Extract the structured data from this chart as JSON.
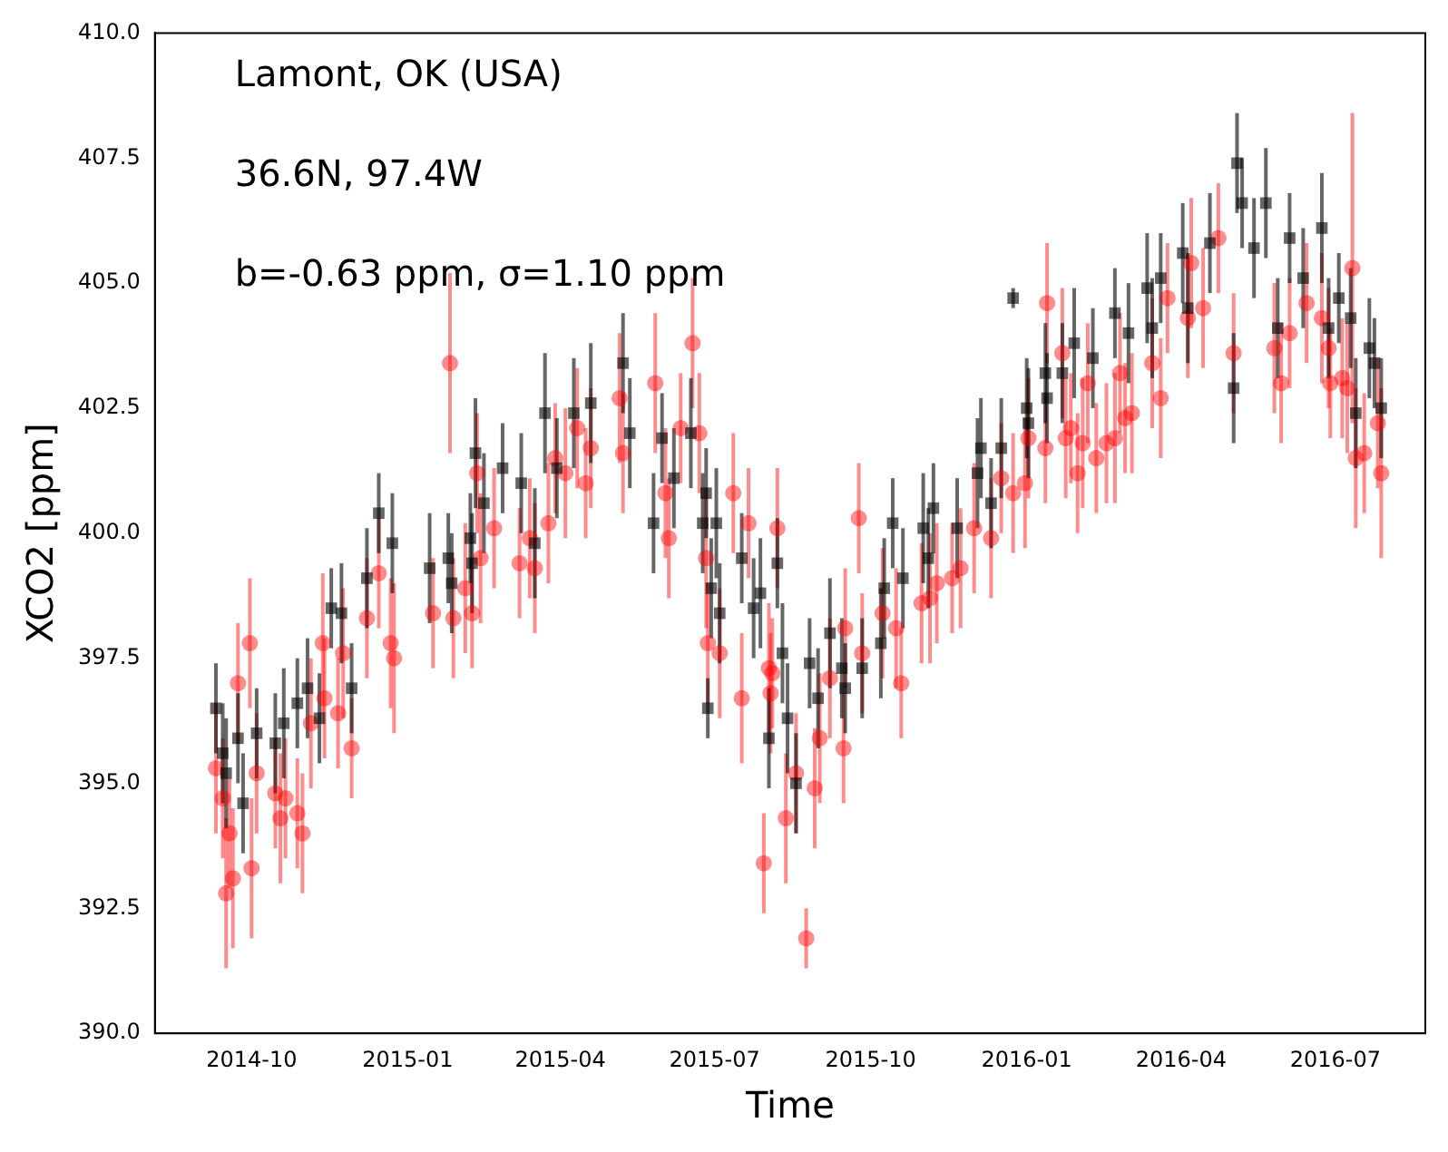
{
  "chart_data": {
    "type": "scatter",
    "xlabel": "Time",
    "ylabel": "XCO2 [ppm]",
    "annotations": [
      "Lamont, OK (USA)",
      "36.6N, 97.4W",
      "b=-0.63 ppm, σ=1.10 ppm"
    ],
    "xlim": [
      "2014-08-05",
      "2016-08-23"
    ],
    "xticks": [
      "2014-10",
      "2015-01",
      "2015-04",
      "2015-07",
      "2015-10",
      "2016-01",
      "2016-04",
      "2016-07"
    ],
    "ylim": [
      390,
      410
    ],
    "yticks": [
      {
        "value": 390,
        "label": "390.0"
      },
      {
        "value": 392.5,
        "label": "392.5"
      },
      {
        "value": 395,
        "label": "395.0"
      },
      {
        "value": 397.5,
        "label": "397.5"
      },
      {
        "value": 400,
        "label": "400.0"
      },
      {
        "value": 402.5,
        "label": "402.5"
      },
      {
        "value": 405,
        "label": "405.0"
      },
      {
        "value": 407.5,
        "label": "407.5"
      },
      {
        "value": 410,
        "label": "410.0"
      }
    ],
    "grid": false,
    "legend": false,
    "series": [
      {
        "color": "#ff0000",
        "marker": "circle",
        "x": [
          "2014-09-10",
          "2014-09-14",
          "2014-09-16",
          "2014-09-18",
          "2014-09-20",
          "2014-09-23",
          "2014-09-30",
          "2014-10-01",
          "2014-10-04",
          "2014-10-15",
          "2014-10-18",
          "2014-10-21",
          "2014-10-28",
          "2014-10-31",
          "2014-11-05",
          "2014-11-12",
          "2014-11-13",
          "2014-11-21",
          "2014-11-24",
          "2014-11-29",
          "2014-12-08",
          "2014-12-15",
          "2014-12-22",
          "2014-12-24",
          "2015-01-16",
          "2015-01-26",
          "2015-01-28",
          "2015-02-04",
          "2015-02-08",
          "2015-02-11",
          "2015-02-13",
          "2015-02-21",
          "2015-03-08",
          "2015-03-14",
          "2015-03-17",
          "2015-03-25",
          "2015-03-29",
          "2015-04-04",
          "2015-04-11",
          "2015-04-16",
          "2015-04-19",
          "2015-05-06",
          "2015-05-08",
          "2015-05-27",
          "2015-06-02",
          "2015-06-04",
          "2015-06-11",
          "2015-06-18",
          "2015-06-22",
          "2015-06-26",
          "2015-06-27",
          "2015-07-04",
          "2015-07-12",
          "2015-07-17",
          "2015-07-21",
          "2015-07-30",
          "2015-08-02",
          "2015-08-03",
          "2015-08-04",
          "2015-08-07",
          "2015-08-12",
          "2015-08-18",
          "2015-08-24",
          "2015-08-29",
          "2015-09-01",
          "2015-09-07",
          "2015-09-15",
          "2015-09-16",
          "2015-09-24",
          "2015-09-26",
          "2015-10-08",
          "2015-10-16",
          "2015-10-19",
          "2015-10-31",
          "2015-11-05",
          "2015-11-09",
          "2015-11-18",
          "2015-11-23",
          "2015-12-01",
          "2015-12-11",
          "2015-12-17",
          "2015-12-24",
          "2015-12-31",
          "2016-01-02",
          "2016-01-12",
          "2016-01-13",
          "2016-01-22",
          "2016-01-24",
          "2016-01-27",
          "2016-01-31",
          "2016-02-03",
          "2016-02-06",
          "2016-02-11",
          "2016-02-17",
          "2016-02-22",
          "2016-02-25",
          "2016-02-28",
          "2016-03-03",
          "2016-03-15",
          "2016-03-20",
          "2016-03-24",
          "2016-04-05",
          "2016-04-07",
          "2016-04-14",
          "2016-04-23",
          "2016-05-02",
          "2016-05-26",
          "2016-05-30",
          "2016-06-04",
          "2016-06-14",
          "2016-06-23",
          "2016-06-27",
          "2016-06-28",
          "2016-07-05",
          "2016-07-08",
          "2016-07-11",
          "2016-07-13",
          "2016-07-18",
          "2016-07-26",
          "2016-07-28"
        ],
        "values": [
          395.3,
          394.7,
          392.8,
          394.0,
          393.1,
          397.0,
          397.8,
          393.3,
          395.2,
          394.8,
          394.3,
          394.7,
          394.4,
          394.0,
          396.2,
          397.8,
          396.7,
          396.4,
          397.6,
          395.7,
          398.3,
          399.2,
          397.8,
          397.5,
          398.4,
          403.4,
          398.3,
          398.9,
          398.4,
          401.2,
          399.5,
          400.1,
          399.4,
          399.9,
          399.3,
          400.2,
          401.5,
          401.2,
          402.1,
          401.0,
          401.7,
          402.7,
          401.6,
          403.0,
          400.8,
          399.9,
          402.1,
          403.8,
          402.0,
          399.5,
          397.8,
          397.6,
          400.8,
          396.7,
          400.2,
          393.4,
          397.3,
          396.8,
          397.2,
          400.1,
          394.3,
          395.2,
          391.9,
          394.9,
          395.9,
          397.1,
          395.7,
          398.1,
          400.3,
          397.6,
          398.4,
          398.1,
          397.0,
          398.6,
          398.7,
          399.0,
          399.1,
          399.3,
          400.1,
          399.9,
          401.1,
          400.8,
          401.0,
          401.9,
          401.7,
          404.6,
          403.6,
          401.9,
          402.1,
          401.2,
          401.8,
          403.0,
          401.5,
          401.8,
          401.9,
          403.2,
          402.3,
          402.4,
          403.4,
          402.7,
          404.7,
          404.3,
          405.4,
          404.5,
          405.9,
          403.6,
          403.7,
          403.0,
          404.0,
          404.6,
          404.3,
          403.7,
          403.0,
          403.1,
          402.9,
          405.3,
          401.5,
          401.6,
          402.2,
          401.2
        ],
        "errors": [
          1.3,
          1.2,
          1.5,
          1.1,
          1.4,
          1.2,
          1.3,
          1.4,
          1.2,
          1.1,
          1.3,
          1.2,
          1.1,
          1.2,
          1.3,
          1.4,
          1.2,
          1.1,
          1.3,
          1.0,
          1.2,
          1.1,
          1.3,
          1.5,
          1.1,
          1.8,
          1.2,
          1.3,
          1.1,
          1.2,
          1.3,
          1.2,
          1.1,
          1.2,
          1.3,
          1.2,
          1.1,
          1.3,
          1.2,
          1.1,
          1.2,
          1.3,
          1.2,
          1.4,
          1.3,
          1.2,
          1.1,
          1.3,
          1.2,
          1.4,
          1.2,
          1.3,
          1.2,
          1.3,
          1.1,
          1.0,
          1.3,
          1.2,
          1.1,
          1.2,
          1.3,
          1.2,
          0.6,
          1.2,
          1.3,
          1.2,
          1.1,
          1.2,
          1.1,
          1.2,
          1.3,
          1.2,
          1.1,
          1.2,
          1.3,
          1.2,
          1.1,
          1.2,
          1.3,
          1.2,
          1.1,
          1.2,
          1.3,
          1.2,
          1.1,
          1.2,
          1.3,
          1.2,
          1.1,
          1.2,
          1.3,
          1.2,
          1.1,
          1.2,
          1.3,
          1.2,
          1.1,
          1.2,
          1.3,
          1.2,
          1.1,
          1.2,
          1.3,
          1.2,
          1.1,
          1.2,
          1.3,
          1.2,
          1.1,
          1.2,
          1.3,
          1.2,
          1.1,
          1.2,
          1.3,
          3.1,
          1.4,
          1.2,
          1.3,
          1.7
        ]
      },
      {
        "color": "#000000",
        "marker": "square",
        "x": [
          "2014-09-10",
          "2014-09-14",
          "2014-09-16",
          "2014-09-23",
          "2014-09-26",
          "2014-10-04",
          "2014-10-15",
          "2014-10-20",
          "2014-10-28",
          "2014-11-03",
          "2014-11-10",
          "2014-11-17",
          "2014-11-23",
          "2014-11-29",
          "2014-12-08",
          "2014-12-15",
          "2014-12-23",
          "2015-01-14",
          "2015-01-25",
          "2015-01-27",
          "2015-02-07",
          "2015-02-08",
          "2015-02-10",
          "2015-02-15",
          "2015-02-26",
          "2015-03-09",
          "2015-03-17",
          "2015-03-23",
          "2015-03-30",
          "2015-04-09",
          "2015-04-19",
          "2015-05-08",
          "2015-05-12",
          "2015-05-26",
          "2015-05-31",
          "2015-06-07",
          "2015-06-17",
          "2015-06-24",
          "2015-06-26",
          "2015-06-27",
          "2015-06-29",
          "2015-07-02",
          "2015-07-04",
          "2015-07-17",
          "2015-07-24",
          "2015-07-28",
          "2015-08-02",
          "2015-08-07",
          "2015-08-10",
          "2015-08-13",
          "2015-08-18",
          "2015-08-26",
          "2015-08-31",
          "2015-09-07",
          "2015-09-14",
          "2015-09-16",
          "2015-09-26",
          "2015-10-07",
          "2015-10-09",
          "2015-10-14",
          "2015-10-20",
          "2015-11-01",
          "2015-11-04",
          "2015-11-07",
          "2015-11-21",
          "2015-12-03",
          "2015-12-05",
          "2015-12-11",
          "2015-12-17",
          "2015-12-24",
          "2016-01-01",
          "2016-01-02",
          "2016-01-12",
          "2016-01-13",
          "2016-01-22",
          "2016-01-29",
          "2016-02-09",
          "2016-02-22",
          "2016-03-01",
          "2016-03-12",
          "2016-03-15",
          "2016-03-20",
          "2016-04-02",
          "2016-04-05",
          "2016-04-18",
          "2016-05-02",
          "2016-05-04",
          "2016-05-07",
          "2016-05-14",
          "2016-05-21",
          "2016-05-28",
          "2016-06-04",
          "2016-06-12",
          "2016-06-23",
          "2016-06-27",
          "2016-07-03",
          "2016-07-10",
          "2016-07-13",
          "2016-07-21",
          "2016-07-24",
          "2016-07-28"
        ],
        "values": [
          396.5,
          395.6,
          395.2,
          395.9,
          394.6,
          396.0,
          395.8,
          396.2,
          396.6,
          396.9,
          396.3,
          398.5,
          398.4,
          396.9,
          399.1,
          400.4,
          399.8,
          399.3,
          399.5,
          399.0,
          399.9,
          399.4,
          401.6,
          400.6,
          401.3,
          401.0,
          399.8,
          402.4,
          401.3,
          402.4,
          402.6,
          403.4,
          402.0,
          400.2,
          401.9,
          401.1,
          402.0,
          400.2,
          400.8,
          396.5,
          398.9,
          400.2,
          398.4,
          399.5,
          398.5,
          398.8,
          395.9,
          399.4,
          397.6,
          396.3,
          395.0,
          397.4,
          396.7,
          398.0,
          397.3,
          396.9,
          397.3,
          397.8,
          398.9,
          400.2,
          399.1,
          400.1,
          399.5,
          400.5,
          400.1,
          401.2,
          401.7,
          400.6,
          401.7,
          404.7,
          402.5,
          402.2,
          403.2,
          402.7,
          403.2,
          403.8,
          403.5,
          404.4,
          404.0,
          404.9,
          404.1,
          405.1,
          405.6,
          404.5,
          405.8,
          402.9,
          407.4,
          406.6,
          405.7,
          406.6,
          404.1,
          405.9,
          405.1,
          406.1,
          404.1,
          404.7,
          404.3,
          402.4,
          403.7,
          403.4,
          402.5
        ],
        "errors": [
          0.9,
          1.0,
          1.1,
          0.9,
          1.0,
          0.9,
          1.0,
          1.1,
          0.9,
          1.0,
          0.9,
          0.8,
          1.0,
          0.9,
          1.0,
          0.8,
          1.0,
          1.1,
          0.9,
          1.0,
          0.9,
          1.0,
          1.1,
          1.0,
          0.9,
          1.0,
          1.1,
          1.2,
          1.0,
          1.1,
          1.2,
          1.0,
          1.1,
          1.0,
          0.9,
          1.0,
          1.1,
          1.0,
          0.9,
          0.6,
          1.0,
          1.1,
          1.0,
          0.9,
          1.0,
          1.1,
          1.0,
          0.9,
          1.0,
          1.1,
          1.0,
          0.9,
          1.0,
          1.1,
          1.0,
          0.9,
          1.0,
          1.1,
          1.0,
          0.9,
          1.0,
          1.1,
          1.0,
          0.9,
          1.0,
          1.1,
          1.0,
          0.9,
          1.0,
          0.2,
          1.0,
          1.1,
          1.0,
          0.9,
          1.0,
          1.1,
          1.0,
          0.9,
          1.0,
          1.1,
          1.0,
          0.9,
          1.0,
          1.1,
          1.0,
          1.1,
          1.0,
          0.9,
          1.0,
          1.1,
          1.0,
          0.9,
          1.0,
          1.1,
          1.0,
          0.9,
          1.0,
          1.1,
          1.0,
          0.9,
          1.0
        ]
      }
    ]
  }
}
